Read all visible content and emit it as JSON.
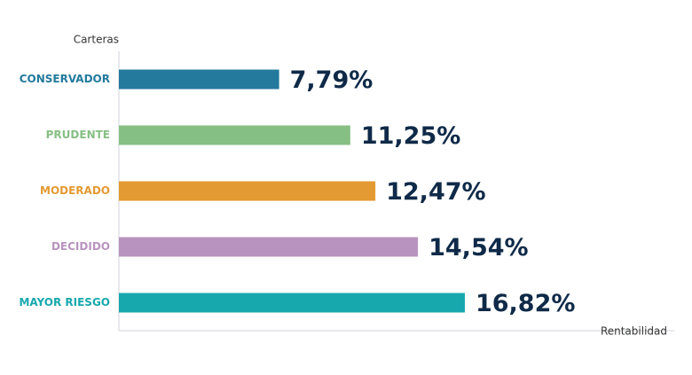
{
  "chart_data": {
    "type": "bar",
    "orientation": "horizontal",
    "y_label": "Carteras",
    "x_label": "Rentabilidad",
    "categories": [
      "CONSERVADOR",
      "PRUDENTE",
      "MODERADO",
      "DECIDIDO",
      "MAYOR RIESGO"
    ],
    "values": [
      7.79,
      11.25,
      12.47,
      14.54,
      16.82
    ],
    "value_labels": [
      "7,79%",
      "11,25%",
      "12,47%",
      "14,54%",
      "16,82%"
    ],
    "colors": [
      "#237a9c",
      "#86bf83",
      "#e39a33",
      "#b893bf",
      "#17a8ae"
    ],
    "xlim": [
      0,
      27
    ]
  }
}
